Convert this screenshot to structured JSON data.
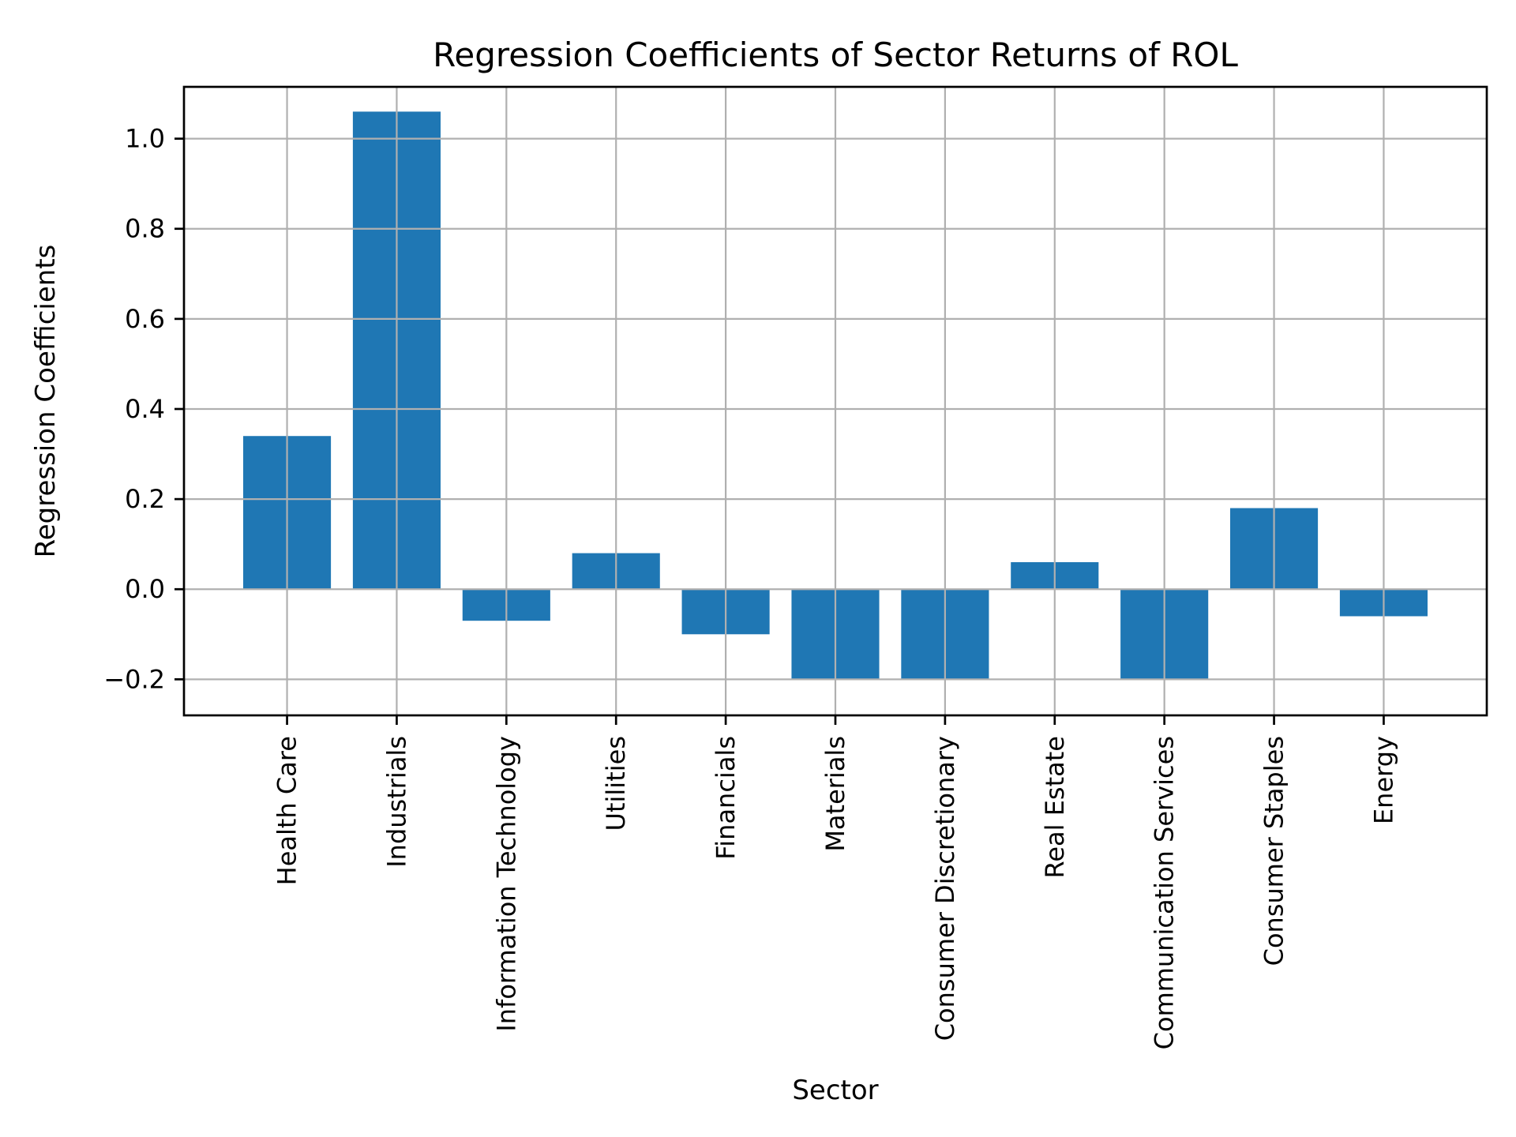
{
  "figure": {
    "title": "Regression Coefficients of Sector Returns of ROL"
  },
  "chart_data": {
    "type": "bar",
    "title": "Regression Coefficients of Sector Returns of ROL",
    "xlabel": "Sector",
    "ylabel": "Regression Coefficients",
    "categories": [
      "Health Care",
      "Industrials",
      "Information Technology",
      "Utilities",
      "Financials",
      "Materials",
      "Consumer Discretionary",
      "Real Estate",
      "Communication Services",
      "Consumer Staples",
      "Energy"
    ],
    "values": [
      0.34,
      1.06,
      -0.07,
      0.08,
      -0.1,
      -0.2,
      -0.2,
      0.06,
      -0.2,
      0.18,
      -0.06
    ],
    "yticks": [
      -0.2,
      0.0,
      0.2,
      0.4,
      0.6,
      0.8,
      1.0
    ],
    "ytick_labels": [
      "−0.2",
      "0.0",
      "0.2",
      "0.4",
      "0.6",
      "0.8",
      "1.0"
    ],
    "ylim": [
      -0.28,
      1.115
    ],
    "grid": true,
    "grid_axis": "both",
    "legend": false,
    "x_tick_rotation": 90,
    "bar_color": "#1f77b4",
    "grid_color": "#b0b0b0",
    "spine_color": "#000000",
    "text_color": "#000000",
    "background_color": "#ffffff"
  }
}
